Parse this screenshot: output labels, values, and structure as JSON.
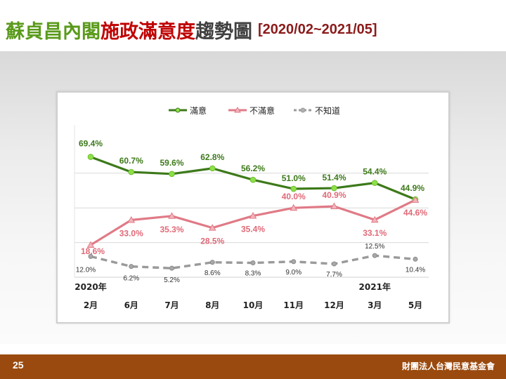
{
  "title": {
    "part1": "蘇貞昌內閣",
    "part2": "施政滿意度",
    "part3": "趨勢圖",
    "range": "[2020/02~2021/05]"
  },
  "footer": {
    "page_number": "25",
    "org": "財團法人台灣民意基金會"
  },
  "colors": {
    "satisfied": "#3d7a1a",
    "satisfied_marker": "#8ee04a",
    "dissatisfied": "#e07a86",
    "dissatisfied_marker": "#f2b5bd",
    "unknown": "#9a9a9a",
    "footer": "#9a4a0e"
  },
  "chart_data": {
    "type": "line",
    "x_year_labels": [
      "2020年",
      "2021年"
    ],
    "categories": [
      "2月",
      "6月",
      "7月",
      "8月",
      "10月",
      "11月",
      "12月",
      "3月",
      "5月"
    ],
    "series": [
      {
        "name": "滿意",
        "values": [
          69.4,
          60.7,
          59.6,
          62.8,
          56.2,
          51.0,
          51.4,
          54.4,
          44.9
        ],
        "labels": [
          "69.4%",
          "60.7%",
          "59.6%",
          "62.8%",
          "56.2%",
          "51.0%",
          "51.4%",
          "54.4%",
          "44.9%"
        ]
      },
      {
        "name": "不滿意",
        "values": [
          18.6,
          33.0,
          35.3,
          28.5,
          35.4,
          40.0,
          40.9,
          33.1,
          44.6
        ],
        "labels": [
          "18.6%",
          "33.0%",
          "35.3%",
          "28.5%",
          "35.4%",
          "40.0%",
          "40.9%",
          "33.1%",
          "44.6%"
        ]
      },
      {
        "name": "不知道",
        "values": [
          12.0,
          6.2,
          5.2,
          8.6,
          8.3,
          9.0,
          7.7,
          12.5,
          10.4
        ],
        "labels": [
          "12.0%",
          "6.2%",
          "5.2%",
          "8.6%",
          "8.3%",
          "9.0%",
          "7.7%",
          "12.5%",
          "10.4%"
        ]
      }
    ],
    "ylim": [
      0,
      80
    ],
    "grid": true,
    "legend_position": "top-center"
  }
}
